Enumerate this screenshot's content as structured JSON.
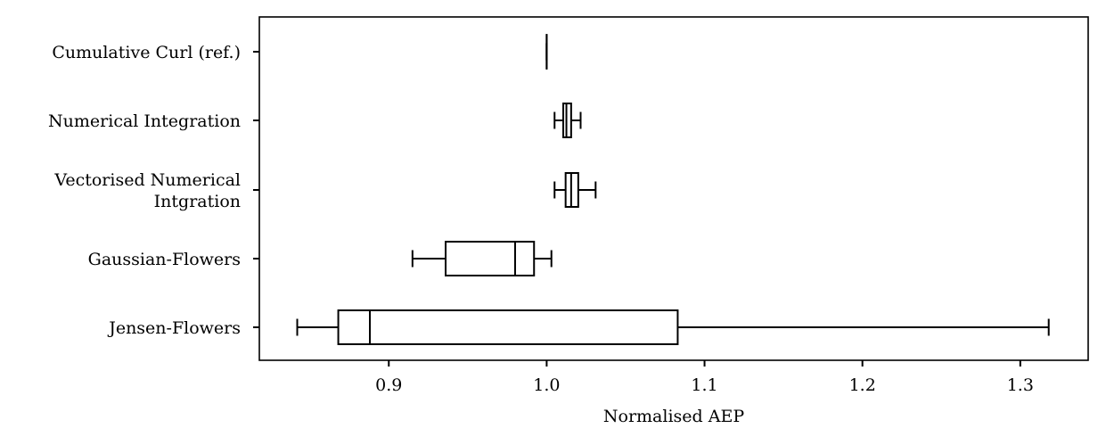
{
  "chart_data": {
    "type": "boxplot",
    "orientation": "horizontal",
    "title": "",
    "xlabel": "Normalised AEP",
    "ylabel": "",
    "xlim": [
      0.818,
      1.343
    ],
    "xticks": [
      0.9,
      1.0,
      1.1,
      1.2,
      1.3
    ],
    "xtick_labels": [
      "0.9",
      "1.0",
      "1.1",
      "1.2",
      "1.3"
    ],
    "grid": false,
    "categories": [
      {
        "label_lines": [
          "Cumulative Curl (ref.)"
        ],
        "whisker_low": 1.0,
        "q1": 1.0,
        "median": 1.0,
        "q3": 1.0,
        "whisker_high": 1.0
      },
      {
        "label_lines": [
          "Numerical Integration"
        ],
        "whisker_low": 1.005,
        "q1": 1.0105,
        "median": 1.0125,
        "q3": 1.0155,
        "whisker_high": 1.0215
      },
      {
        "label_lines": [
          "Vectorised Numerical",
          "Intgration"
        ],
        "whisker_low": 1.005,
        "q1": 1.012,
        "median": 1.0155,
        "q3": 1.02,
        "whisker_high": 1.031
      },
      {
        "label_lines": [
          "Gaussian-Flowers"
        ],
        "whisker_low": 0.915,
        "q1": 0.936,
        "median": 0.98,
        "q3": 0.992,
        "whisker_high": 1.003
      },
      {
        "label_lines": [
          "Jensen-Flowers"
        ],
        "whisker_low": 0.842,
        "q1": 0.868,
        "median": 0.888,
        "q3": 1.083,
        "whisker_high": 1.318
      }
    ]
  }
}
